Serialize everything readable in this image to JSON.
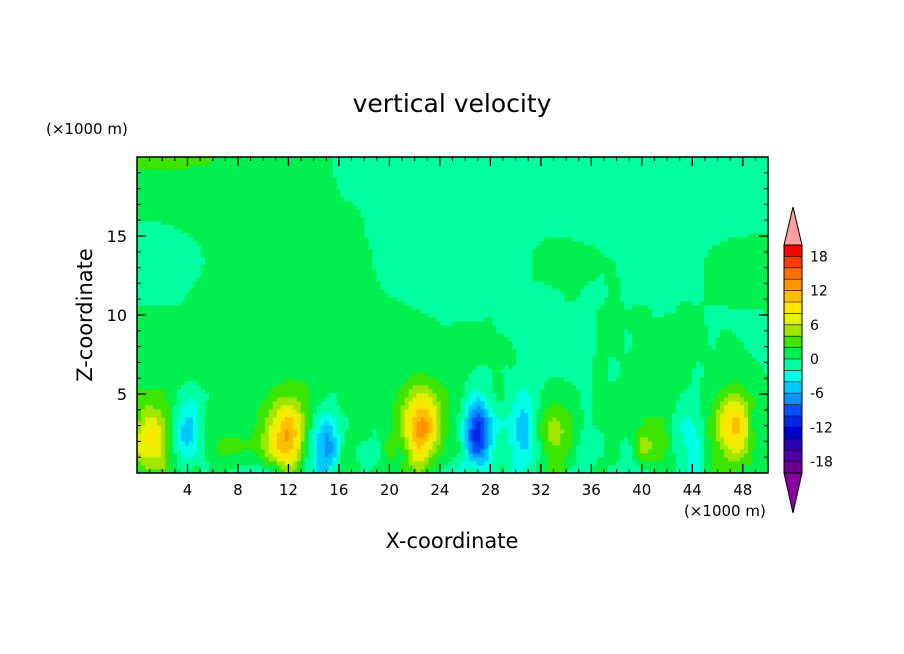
{
  "chart_data": {
    "type": "heatmap",
    "title": "vertical velocity",
    "xlabel": "X-coordinate",
    "ylabel": "Z-coordinate",
    "x_unit": "(×1000 m)",
    "y_unit": "(×1000 m)",
    "xlim": [
      0,
      50
    ],
    "ylim": [
      0,
      20
    ],
    "x_ticks": [
      4,
      8,
      12,
      16,
      20,
      24,
      28,
      32,
      36,
      40,
      44,
      48
    ],
    "x_tick_labels": [
      "4",
      "8",
      "12",
      "16",
      "20",
      "24",
      "28",
      "32",
      "36",
      "40",
      "44",
      "48"
    ],
    "y_ticks": [
      5,
      10,
      15
    ],
    "y_tick_labels": [
      "5",
      "10",
      "15"
    ],
    "colorbar": {
      "levels": [
        -20,
        -18,
        -16,
        -14,
        -12,
        -10,
        -8,
        -6,
        -4,
        -2,
        0,
        2,
        4,
        6,
        8,
        10,
        12,
        14,
        16,
        18,
        20
      ],
      "colors": [
        "#6d008c",
        "#5000a8",
        "#2a00b4",
        "#0000c8",
        "#0028e6",
        "#0050ff",
        "#0096ff",
        "#00c8ff",
        "#00ffe6",
        "#00ffa0",
        "#00f050",
        "#3ce600",
        "#a0e600",
        "#e6f000",
        "#ffe600",
        "#ffbe00",
        "#ff9600",
        "#ff6e00",
        "#ff3c00",
        "#ff0000"
      ],
      "under_color": "#8c00a0",
      "over_color": "#ffa0a0",
      "tick_labels": [
        "18",
        "12",
        "6",
        "0",
        "-6",
        "-12",
        "-18"
      ],
      "tick_values": [
        18,
        12,
        6,
        0,
        -6,
        -12,
        -18
      ]
    },
    "features": [
      {
        "kind": "updraft",
        "x": 1.0,
        "z": 2.0,
        "peak": 9
      },
      {
        "kind": "updraft",
        "x": 11.8,
        "z": 2.4,
        "peak": 11
      },
      {
        "kind": "updraft",
        "x": 22.6,
        "z": 2.8,
        "peak": 12
      },
      {
        "kind": "updraft",
        "x": 33.0,
        "z": 2.5,
        "peak": 6
      },
      {
        "kind": "updraft",
        "x": 47.3,
        "z": 3.0,
        "peak": 10
      },
      {
        "kind": "updraft",
        "x": 41.0,
        "z": 1.8,
        "peak": 4
      },
      {
        "kind": "downdraft",
        "x": 4.0,
        "z": 2.6,
        "peak": -6
      },
      {
        "kind": "downdraft",
        "x": 14.8,
        "z": 1.8,
        "peak": -8
      },
      {
        "kind": "downdraft",
        "x": 27.0,
        "z": 2.6,
        "peak": -11
      },
      {
        "kind": "downdraft",
        "x": 30.5,
        "z": 3.0,
        "peak": -5
      },
      {
        "kind": "downdraft",
        "x": 43.5,
        "z": 2.2,
        "peak": -4
      }
    ]
  }
}
